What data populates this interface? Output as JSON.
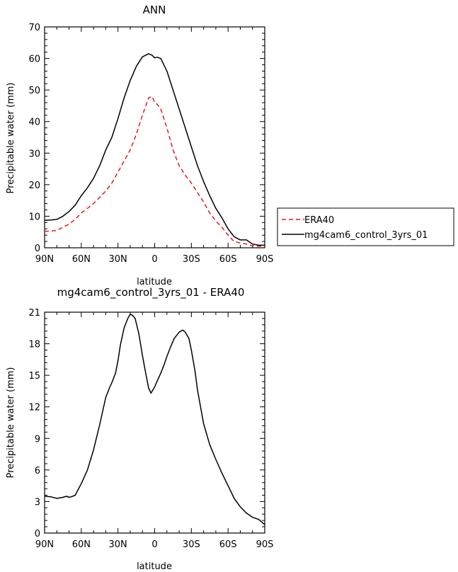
{
  "colors": {
    "model": "#000000",
    "obs": "#e41a1c"
  },
  "chart_data": [
    {
      "type": "line",
      "title": "ANN",
      "xlabel": "latitude",
      "ylabel": "Precipitable water (mm)",
      "xlim": [
        90,
        -90
      ],
      "ylim": [
        0,
        70
      ],
      "yticks": [
        0,
        10,
        20,
        30,
        40,
        50,
        60,
        70
      ],
      "xticks": [
        {
          "value": 90,
          "label": "90N"
        },
        {
          "value": 60,
          "label": "60N"
        },
        {
          "value": 30,
          "label": "30N"
        },
        {
          "value": 0,
          "label": "0"
        },
        {
          "value": -30,
          "label": "30S"
        },
        {
          "value": -60,
          "label": "60S"
        },
        {
          "value": -90,
          "label": "90S"
        }
      ],
      "legend_position": "right",
      "series": [
        {
          "name": "ERA40",
          "style": "dashed",
          "color": "#e41a1c",
          "x": [
            90,
            85,
            80,
            75,
            70,
            65,
            60,
            55,
            50,
            45,
            40,
            35,
            30,
            25,
            20,
            15,
            10,
            5,
            2,
            0,
            -2,
            -5,
            -10,
            -15,
            -20,
            -25,
            -30,
            -35,
            -40,
            -45,
            -50,
            -55,
            -60,
            -65,
            -70,
            -75,
            -80,
            -85,
            -90
          ],
          "y": [
            5.2,
            5.3,
            5.5,
            6.5,
            7.5,
            9,
            11,
            12.5,
            14,
            16,
            18,
            20.5,
            24,
            27.5,
            31,
            36,
            42,
            47.5,
            48,
            46,
            45.5,
            44,
            38,
            31,
            26,
            23,
            20.5,
            17.5,
            14.5,
            11,
            8.5,
            6.5,
            4,
            2,
            1.5,
            1.2,
            0.6,
            0.5,
            0.5
          ]
        },
        {
          "name": "mg4cam6_control_3yrs_01",
          "style": "solid",
          "color": "#000000",
          "x": [
            90,
            85,
            80,
            75,
            70,
            65,
            60,
            55,
            50,
            45,
            40,
            35,
            30,
            25,
            20,
            15,
            10,
            5,
            2,
            0,
            -2,
            -5,
            -10,
            -15,
            -20,
            -25,
            -30,
            -35,
            -40,
            -45,
            -50,
            -55,
            -60,
            -65,
            -70,
            -75,
            -80,
            -85,
            -90
          ],
          "y": [
            8.7,
            8.8,
            9,
            10,
            11.5,
            13.5,
            16.5,
            19,
            22,
            26,
            31,
            35,
            41,
            47.5,
            53,
            57.5,
            60.5,
            61.5,
            61,
            60.2,
            60.4,
            60,
            56,
            50,
            44,
            38,
            32,
            26,
            21,
            16.5,
            12.5,
            9.5,
            6,
            3.5,
            2.5,
            2.5,
            1.2,
            0.8,
            0.8
          ]
        }
      ]
    },
    {
      "type": "line",
      "title": "mg4cam6_control_3yrs_01 - ERA40",
      "xlabel": "latitude",
      "ylabel": "Precipitable water (mm)",
      "xlim": [
        90,
        -90
      ],
      "ylim": [
        0,
        21
      ],
      "yticks": [
        0,
        3,
        6,
        9,
        12,
        15,
        18,
        21
      ],
      "xticks": [
        {
          "value": 90,
          "label": "90N"
        },
        {
          "value": 60,
          "label": "60N"
        },
        {
          "value": 30,
          "label": "30N"
        },
        {
          "value": 0,
          "label": "0"
        },
        {
          "value": -30,
          "label": "30S"
        },
        {
          "value": -60,
          "label": "60S"
        },
        {
          "value": -90,
          "label": "90S"
        }
      ],
      "series": [
        {
          "style": "solid",
          "color": "#000000",
          "x": [
            90,
            85,
            80,
            75,
            72,
            70,
            68,
            65,
            60,
            55,
            50,
            45,
            40,
            37,
            35,
            32,
            30,
            28,
            25,
            22,
            20,
            18,
            16,
            13,
            10,
            8,
            5,
            3,
            0,
            -3,
            -5,
            -8,
            -10,
            -13,
            -16,
            -18,
            -20,
            -23,
            -25,
            -28,
            -30,
            -33,
            -35,
            -40,
            -45,
            -50,
            -55,
            -60,
            -65,
            -70,
            -75,
            -80,
            -85,
            -88,
            -90
          ],
          "y": [
            3.5,
            3.45,
            3.3,
            3.4,
            3.5,
            3.4,
            3.45,
            3.6,
            4.7,
            6.0,
            7.9,
            10.3,
            12.9,
            13.8,
            14.3,
            15.2,
            16.4,
            17.9,
            19.5,
            20.4,
            20.8,
            20.7,
            20.4,
            19.0,
            16.9,
            15.6,
            13.8,
            13.3,
            13.9,
            14.7,
            15.2,
            16.1,
            16.8,
            17.7,
            18.5,
            18.8,
            19.1,
            19.3,
            19.1,
            18.5,
            17.4,
            15.4,
            13.6,
            10.4,
            8.4,
            7.0,
            5.7,
            4.5,
            3.3,
            2.5,
            1.9,
            1.5,
            1.3,
            1.0,
            0.8
          ]
        }
      ]
    }
  ]
}
